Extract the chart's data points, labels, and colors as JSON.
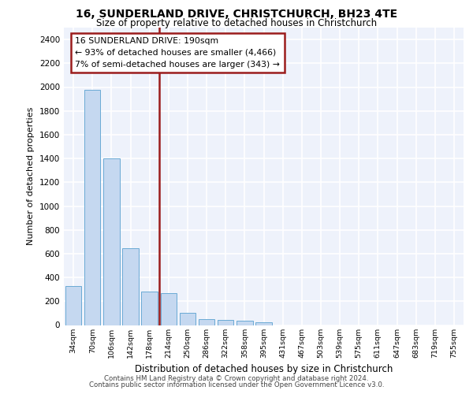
{
  "title1": "16, SUNDERLAND DRIVE, CHRISTCHURCH, BH23 4TE",
  "title2": "Size of property relative to detached houses in Christchurch",
  "xlabel": "Distribution of detached houses by size in Christchurch",
  "ylabel": "Number of detached properties",
  "bin_labels": [
    "34sqm",
    "70sqm",
    "106sqm",
    "142sqm",
    "178sqm",
    "214sqm",
    "250sqm",
    "286sqm",
    "322sqm",
    "358sqm",
    "395sqm",
    "431sqm",
    "467sqm",
    "503sqm",
    "539sqm",
    "575sqm",
    "611sqm",
    "647sqm",
    "683sqm",
    "719sqm",
    "755sqm"
  ],
  "bar_heights": [
    325,
    1975,
    1400,
    645,
    280,
    270,
    100,
    48,
    40,
    38,
    22,
    0,
    0,
    0,
    0,
    0,
    0,
    0,
    0,
    0,
    0
  ],
  "bar_color": "#c5d8f0",
  "bar_edge_color": "#6aaad4",
  "vline_x": 5.0,
  "vline_color": "#9b1c1c",
  "annotation_text": "16 SUNDERLAND DRIVE: 190sqm\n← 93% of detached houses are smaller (4,466)\n7% of semi-detached houses are larger (343) →",
  "annotation_box_color": "#9b1c1c",
  "background_color": "#eef2fb",
  "grid_color": "#ffffff",
  "ylim": [
    0,
    2500
  ],
  "yticks": [
    0,
    200,
    400,
    600,
    800,
    1000,
    1200,
    1400,
    1600,
    1800,
    2000,
    2200,
    2400
  ],
  "footer1": "Contains HM Land Registry data © Crown copyright and database right 2024.",
  "footer2": "Contains public sector information licensed under the Open Government Licence v3.0."
}
